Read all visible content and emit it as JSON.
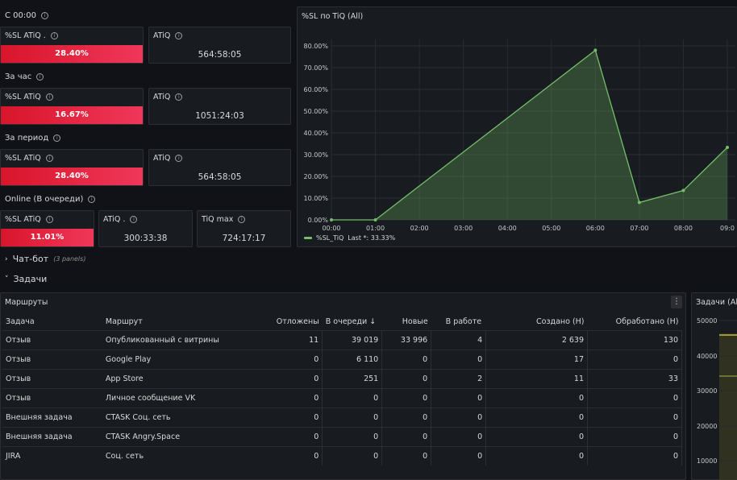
{
  "sections": {
    "since_midnight": "С 00:00",
    "per_hour": "За час",
    "per_period": "За период",
    "online": "Online (В очереди)"
  },
  "stats": {
    "r1_sl_title": "%SL ATiQ .",
    "r1_sl_value": "28.40%",
    "r1_atiq_title": "ATiQ",
    "r1_atiq_value": "564:58:05",
    "r2_sl_title": "%SL ATiQ",
    "r2_sl_value": "16.67%",
    "r2_atiq_title": "ATiQ",
    "r2_atiq_value": "1051:24:03",
    "r3_sl_title": "%SL ATiQ",
    "r3_sl_value": "28.40%",
    "r3_atiq_title": "ATiQ",
    "r3_atiq_value": "564:58:05",
    "r4_sl_title": "%SL ATiQ",
    "r4_sl_value": "11.01%",
    "r4_atiq_title": "ATiQ .",
    "r4_atiq_value": "300:33:38",
    "r4_tiq_title": "TiQ max",
    "r4_tiq_value": "724:17:17"
  },
  "chart_panel": {
    "title": "%SL по TiQ (All)",
    "legend_name": "%SL_TiQ",
    "legend_last": "Last *: 33.33%"
  },
  "chart_data": {
    "type": "area",
    "x": [
      "00:00",
      "01:00",
      "02:00",
      "03:00",
      "04:00",
      "05:00",
      "06:00",
      "07:00",
      "08:00",
      "09:0"
    ],
    "points": [
      [
        0,
        0
      ],
      [
        1,
        0
      ],
      [
        6,
        78
      ],
      [
        7,
        8
      ],
      [
        8,
        13.5
      ],
      [
        9,
        33.33
      ]
    ],
    "y_ticks": [
      "0.00%",
      "10.00%",
      "20.00%",
      "30.00%",
      "40.00%",
      "50.00%",
      "60.00%",
      "70.00%",
      "80.00%"
    ],
    "ylim": [
      0,
      80
    ],
    "series": [
      {
        "name": "%SL_TiQ"
      }
    ],
    "color": "#73bf69",
    "grid": true,
    "legend": "bottom-left"
  },
  "collapsed_row": {
    "title": "Чат-бот",
    "note": "(3 panels)"
  },
  "tasks_row": {
    "title": "Задачи"
  },
  "routes_table": {
    "title": "Маршруты",
    "menu_icon": "⋮",
    "columns": [
      "Задача",
      "Маршрут",
      "Отложены",
      "В очереди",
      "Новые",
      "В работе",
      "Создано (Н)",
      "Обработано (Н)"
    ],
    "sort_indicator": "↓",
    "rows": [
      [
        "Отзыв",
        "Опубликованный с витрины",
        "11",
        "39 019",
        "33 996",
        "4",
        "2 639",
        "130"
      ],
      [
        "Отзыв",
        "Google Play",
        "0",
        "6 110",
        "0",
        "0",
        "17",
        "0"
      ],
      [
        "Отзыв",
        "App Store",
        "0",
        "251",
        "0",
        "2",
        "11",
        "33"
      ],
      [
        "Отзыв",
        "Личное сообщение VK",
        "0",
        "0",
        "0",
        "0",
        "0",
        "0"
      ],
      [
        "Внешняя задача",
        "CTASK Соц. сеть",
        "0",
        "0",
        "0",
        "0",
        "0",
        "0"
      ],
      [
        "Внешняя задача",
        "CTASK Angry.Space",
        "0",
        "0",
        "0",
        "0",
        "0",
        "0"
      ],
      [
        "JIRA",
        "Соц. сеть",
        "0",
        "0",
        "0",
        "0",
        "0",
        "0"
      ]
    ]
  },
  "tasks_panel": {
    "title": "Задачи (All",
    "y_ticks": [
      "50000",
      "40000",
      "30000",
      "20000",
      "10000"
    ]
  }
}
